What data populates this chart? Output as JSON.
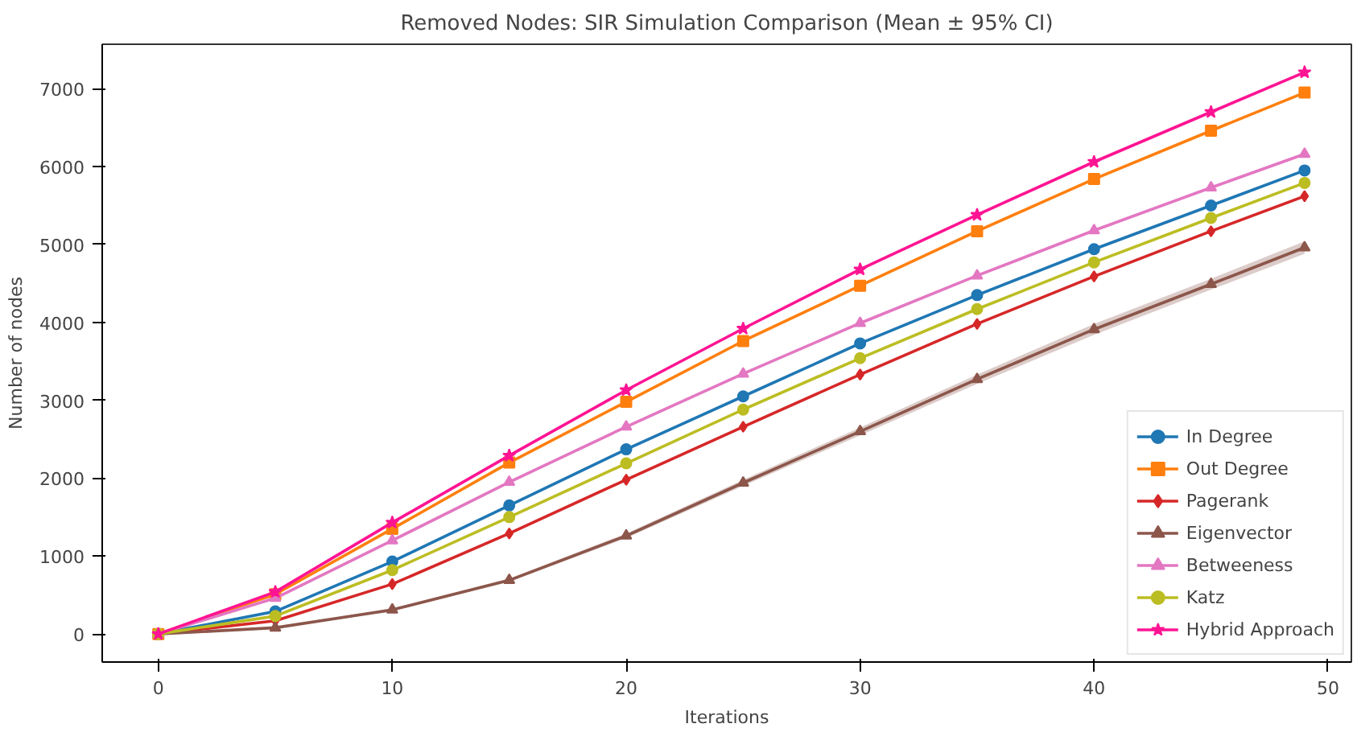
{
  "chart_data": {
    "type": "line",
    "title": "Removed Nodes: SIR Simulation Comparison (Mean ± 95% CI)",
    "xlabel": "Iterations",
    "ylabel": "Number of nodes",
    "x": [
      0,
      5,
      10,
      15,
      20,
      25,
      30,
      35,
      40,
      45,
      49
    ],
    "xlim": [
      -2.4,
      51
    ],
    "xticks": [
      0,
      10,
      20,
      30,
      40,
      50
    ],
    "ylim": [
      -360,
      7570
    ],
    "yticks": [
      0,
      1000,
      2000,
      3000,
      4000,
      5000,
      6000,
      7000
    ],
    "grid": false,
    "legend": "bottom right",
    "series": [
      {
        "name": "In Degree",
        "color": "#1f77b4",
        "marker": "circle",
        "values": [
          0,
          290,
          930,
          1650,
          2370,
          3050,
          3730,
          4350,
          4940,
          5500,
          5950
        ]
      },
      {
        "name": "Out Degree",
        "color": "#ff7f0e",
        "marker": "square",
        "values": [
          0,
          510,
          1350,
          2200,
          2980,
          3760,
          4470,
          5170,
          5840,
          6460,
          6950
        ]
      },
      {
        "name": "Pagerank",
        "color": "#d62728",
        "marker": "diamond",
        "values": [
          0,
          170,
          640,
          1290,
          1980,
          2660,
          3330,
          3980,
          4590,
          5170,
          5620
        ]
      },
      {
        "name": "Eigenvector",
        "color": "#8c564b",
        "marker": "triangle",
        "values": [
          0,
          80,
          310,
          690,
          1260,
          1940,
          2600,
          3270,
          3910,
          4490,
          4960
        ],
        "lower": [
          0,
          70,
          290,
          670,
          1230,
          1900,
          2550,
          3210,
          3840,
          4420,
          4880
        ],
        "upper": [
          0,
          90,
          320,
          710,
          1290,
          1980,
          2650,
          3330,
          3980,
          4560,
          5040
        ]
      },
      {
        "name": "Betweeness",
        "color": "#e377c2",
        "marker": "triangle",
        "values": [
          0,
          460,
          1200,
          1950,
          2660,
          3340,
          3990,
          4600,
          5180,
          5730,
          6160
        ]
      },
      {
        "name": "Katz",
        "color": "#bcbd22",
        "marker": "circle",
        "values": [
          0,
          230,
          820,
          1500,
          2190,
          2880,
          3540,
          4170,
          4770,
          5340,
          5790
        ]
      },
      {
        "name": "Hybrid Approach",
        "color": "#ff1493",
        "marker": "star",
        "values": [
          0,
          540,
          1430,
          2290,
          3130,
          3920,
          4680,
          5380,
          6060,
          6700,
          7210
        ]
      }
    ]
  }
}
